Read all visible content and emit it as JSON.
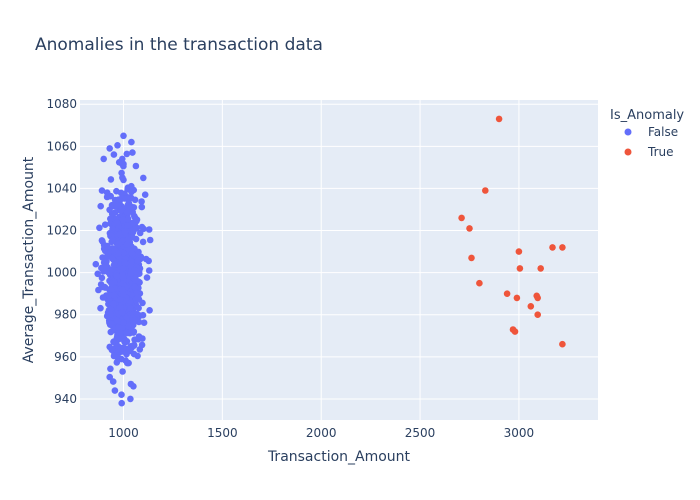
{
  "chart_data": {
    "type": "scatter",
    "title": "Anomalies in the transaction data",
    "xlabel": "Transaction_Amount",
    "ylabel": "Average_Transaction_Amount",
    "xlim": [
      780,
      3400
    ],
    "ylim": [
      930,
      1082
    ],
    "x_ticks": [
      1000,
      1500,
      2000,
      2500,
      3000
    ],
    "y_ticks": [
      940,
      960,
      980,
      1000,
      1020,
      1040,
      1060,
      1080
    ],
    "grid": true,
    "legend": {
      "title": "Is_Anomaly",
      "position": "top-right",
      "entries": [
        "False",
        "True"
      ]
    },
    "series": [
      {
        "name": "False",
        "color": "#636efa",
        "cluster": {
          "approx_points": 900,
          "x_center": 1000,
          "x_spread": 45,
          "x_range": [
            860,
            1135
          ],
          "y_center": 1000,
          "y_spread": 20,
          "y_range": [
            938,
            1066
          ]
        },
        "points": [
          {
            "x": 1000,
            "y": 1065
          },
          {
            "x": 1040,
            "y": 1062
          },
          {
            "x": 1045,
            "y": 1057
          },
          {
            "x": 930,
            "y": 1059
          },
          {
            "x": 900,
            "y": 1054
          },
          {
            "x": 990,
            "y": 942
          },
          {
            "x": 1035,
            "y": 940
          },
          {
            "x": 1050,
            "y": 946
          },
          {
            "x": 860,
            "y": 1004
          },
          {
            "x": 1130,
            "y": 1001
          },
          {
            "x": 1110,
            "y": 1037
          },
          {
            "x": 1100,
            "y": 1045
          }
        ]
      },
      {
        "name": "True",
        "color": "#ef553b",
        "points": [
          {
            "x": 2900,
            "y": 1073
          },
          {
            "x": 2830,
            "y": 1039
          },
          {
            "x": 2710,
            "y": 1026
          },
          {
            "x": 2750,
            "y": 1021
          },
          {
            "x": 2760,
            "y": 1007
          },
          {
            "x": 2800,
            "y": 995
          },
          {
            "x": 2940,
            "y": 990
          },
          {
            "x": 2990,
            "y": 988
          },
          {
            "x": 3000,
            "y": 1010
          },
          {
            "x": 3005,
            "y": 1002
          },
          {
            "x": 3090,
            "y": 989
          },
          {
            "x": 3095,
            "y": 988
          },
          {
            "x": 3060,
            "y": 984
          },
          {
            "x": 3095,
            "y": 980
          },
          {
            "x": 3110,
            "y": 1002
          },
          {
            "x": 3170,
            "y": 1012
          },
          {
            "x": 3220,
            "y": 1012
          },
          {
            "x": 2970,
            "y": 973
          },
          {
            "x": 2980,
            "y": 972
          },
          {
            "x": 3220,
            "y": 966
          }
        ]
      }
    ]
  }
}
